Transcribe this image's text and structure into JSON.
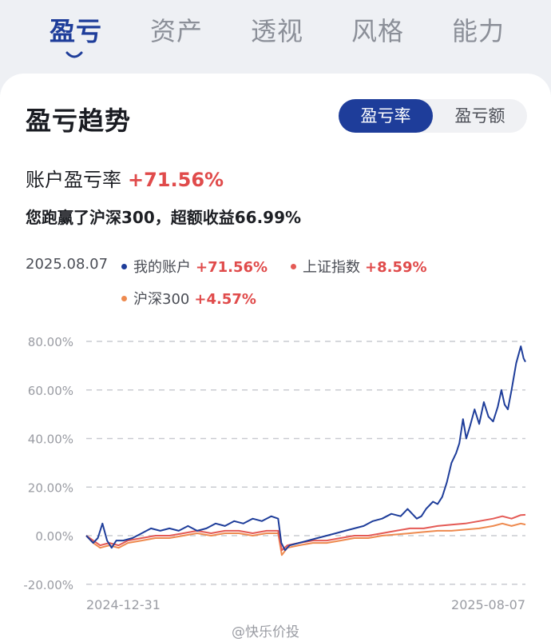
{
  "tabs": [
    {
      "label": "盈亏",
      "active": true
    },
    {
      "label": "资产",
      "active": false
    },
    {
      "label": "透视",
      "active": false
    },
    {
      "label": "风格",
      "active": false
    },
    {
      "label": "能力",
      "active": false
    }
  ],
  "card": {
    "title": "盈亏趋势",
    "toggle": {
      "active": "盈亏率",
      "inactive": "盈亏额"
    },
    "rate_label": "账户盈亏率",
    "rate_value": "+71.56%",
    "beat_text": "您跑赢了沪深300，超额收益66.99%"
  },
  "legend": {
    "date": "2025.08.07",
    "items": [
      {
        "name": "我的账户",
        "value": "+71.56%",
        "color": "#1e3d9a"
      },
      {
        "name": "上证指数",
        "value": "+8.59%",
        "color": "#e45a55"
      },
      {
        "name": "沪深300",
        "value": "+4.57%",
        "color": "#ee8a4f"
      }
    ]
  },
  "chart_data": {
    "type": "line",
    "y_ticks": [
      "80.00%",
      "60.00%",
      "40.00%",
      "20.00%",
      "0.00%",
      "-20.00%"
    ],
    "ylim": [
      -20,
      80
    ],
    "x_labels": [
      "2024-12-31",
      "2025-08-07"
    ],
    "grid": true,
    "series": [
      {
        "name": "我的账户",
        "color": "#1e3d9a",
        "points": [
          [
            0,
            0
          ],
          [
            1.5,
            -3
          ],
          [
            2.5,
            -1
          ],
          [
            3.5,
            5
          ],
          [
            4.5,
            -2
          ],
          [
            5.5,
            -5
          ],
          [
            6.5,
            -2
          ],
          [
            8,
            -2
          ],
          [
            10,
            -1
          ],
          [
            12,
            1
          ],
          [
            14,
            3
          ],
          [
            16,
            2
          ],
          [
            18,
            3
          ],
          [
            20,
            2
          ],
          [
            22,
            4
          ],
          [
            24,
            2
          ],
          [
            26,
            3
          ],
          [
            28,
            5
          ],
          [
            30,
            4
          ],
          [
            32,
            6
          ],
          [
            34,
            5
          ],
          [
            36,
            7
          ],
          [
            38,
            6
          ],
          [
            40,
            8
          ],
          [
            41.5,
            7
          ],
          [
            42.2,
            -3
          ],
          [
            43,
            -6
          ],
          [
            44,
            -4
          ],
          [
            46,
            -3
          ],
          [
            48,
            -2
          ],
          [
            50,
            -1
          ],
          [
            52,
            0
          ],
          [
            54,
            1
          ],
          [
            56,
            2
          ],
          [
            58,
            3
          ],
          [
            60,
            4
          ],
          [
            62,
            6
          ],
          [
            64,
            7
          ],
          [
            66,
            9
          ],
          [
            68,
            8
          ],
          [
            69.5,
            11
          ],
          [
            70.5,
            9
          ],
          [
            71.5,
            7
          ],
          [
            72.5,
            8
          ],
          [
            73.5,
            11
          ],
          [
            75,
            14
          ],
          [
            76,
            13
          ],
          [
            77,
            16
          ],
          [
            78,
            22
          ],
          [
            79,
            30
          ],
          [
            80,
            34
          ],
          [
            80.7,
            38
          ],
          [
            81.5,
            48
          ],
          [
            82.2,
            40
          ],
          [
            83,
            45
          ],
          [
            84,
            52
          ],
          [
            85,
            46
          ],
          [
            86,
            55
          ],
          [
            87,
            49
          ],
          [
            88,
            47
          ],
          [
            89,
            53
          ],
          [
            89.8,
            60
          ],
          [
            90.5,
            54
          ],
          [
            91.2,
            52
          ],
          [
            92,
            60
          ],
          [
            93,
            71
          ],
          [
            94,
            78
          ],
          [
            94.6,
            73
          ],
          [
            95,
            71.56
          ]
        ]
      },
      {
        "name": "上证指数",
        "color": "#e45a55",
        "points": [
          [
            0,
            0
          ],
          [
            1.5,
            -2
          ],
          [
            3,
            -4
          ],
          [
            5,
            -3
          ],
          [
            7,
            -4
          ],
          [
            9,
            -2
          ],
          [
            12,
            -1
          ],
          [
            15,
            0
          ],
          [
            18,
            0
          ],
          [
            21,
            1
          ],
          [
            24,
            2
          ],
          [
            27,
            1
          ],
          [
            30,
            2
          ],
          [
            33,
            2
          ],
          [
            36,
            1
          ],
          [
            39,
            2
          ],
          [
            41.5,
            2
          ],
          [
            42.3,
            -6
          ],
          [
            43.5,
            -4
          ],
          [
            46,
            -3
          ],
          [
            49,
            -2
          ],
          [
            52,
            -2
          ],
          [
            55,
            -1
          ],
          [
            58,
            0
          ],
          [
            61,
            0
          ],
          [
            64,
            1
          ],
          [
            67,
            2
          ],
          [
            70,
            3
          ],
          [
            73,
            3
          ],
          [
            76,
            4
          ],
          [
            79,
            4.5
          ],
          [
            82,
            5
          ],
          [
            85,
            6
          ],
          [
            88,
            7
          ],
          [
            90,
            8
          ],
          [
            92,
            7
          ],
          [
            94,
            8.5
          ],
          [
            95,
            8.59
          ]
        ]
      },
      {
        "name": "沪深300",
        "color": "#ee8a4f",
        "points": [
          [
            0,
            0
          ],
          [
            1.5,
            -3
          ],
          [
            3,
            -5
          ],
          [
            5,
            -4
          ],
          [
            7,
            -5
          ],
          [
            9,
            -3
          ],
          [
            12,
            -2
          ],
          [
            15,
            -1
          ],
          [
            18,
            -1
          ],
          [
            21,
            0
          ],
          [
            24,
            1
          ],
          [
            27,
            0
          ],
          [
            30,
            1
          ],
          [
            33,
            1
          ],
          [
            36,
            0
          ],
          [
            39,
            1
          ],
          [
            41.5,
            1
          ],
          [
            42.3,
            -8
          ],
          [
            43.5,
            -5
          ],
          [
            46,
            -4
          ],
          [
            49,
            -3
          ],
          [
            52,
            -3
          ],
          [
            55,
            -2
          ],
          [
            58,
            -1
          ],
          [
            61,
            -1
          ],
          [
            64,
            0
          ],
          [
            67,
            0.5
          ],
          [
            70,
            1
          ],
          [
            73,
            1.5
          ],
          [
            76,
            2
          ],
          [
            79,
            2
          ],
          [
            82,
            2.5
          ],
          [
            85,
            3
          ],
          [
            88,
            4
          ],
          [
            90,
            5
          ],
          [
            92,
            4
          ],
          [
            94,
            5
          ],
          [
            95,
            4.57
          ]
        ]
      }
    ]
  },
  "watermark": "@快乐价投"
}
